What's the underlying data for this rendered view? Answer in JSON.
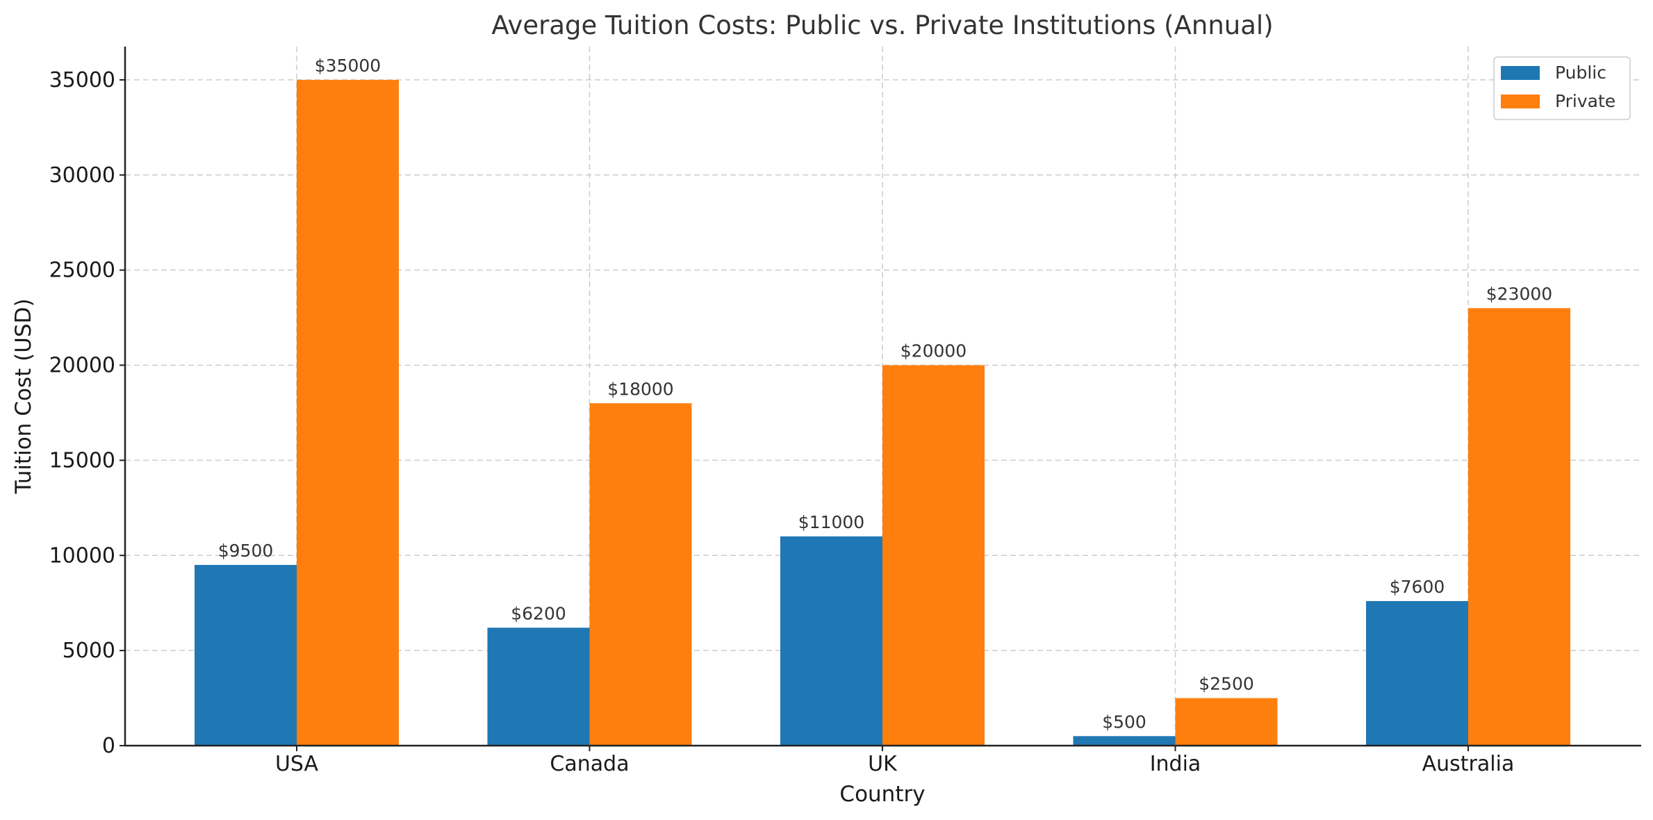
{
  "chart_data": {
    "type": "bar",
    "title": "Average Tuition Costs: Public vs. Private Institutions (Annual)",
    "xlabel": "Country",
    "ylabel": "Tuition Cost (USD)",
    "categories": [
      "USA",
      "Canada",
      "UK",
      "India",
      "Australia"
    ],
    "series": [
      {
        "name": "Public",
        "color": "#1f77b4",
        "values": [
          9500,
          6200,
          11000,
          500,
          7600
        ]
      },
      {
        "name": "Private",
        "color": "#ff7f0e",
        "values": [
          35000,
          18000,
          20000,
          2500,
          23000
        ]
      }
    ],
    "data_labels": [
      [
        "$9500",
        "$6200",
        "$11000",
        "$500",
        "$7600"
      ],
      [
        "$35000",
        "$18000",
        "$20000",
        "$2500",
        "$23000"
      ]
    ],
    "yticks": [
      "0",
      "5000",
      "10000",
      "15000",
      "20000",
      "25000",
      "30000",
      "35000"
    ],
    "ylim": [
      0,
      36750
    ],
    "grid": true,
    "legend_position": "top-right"
  }
}
